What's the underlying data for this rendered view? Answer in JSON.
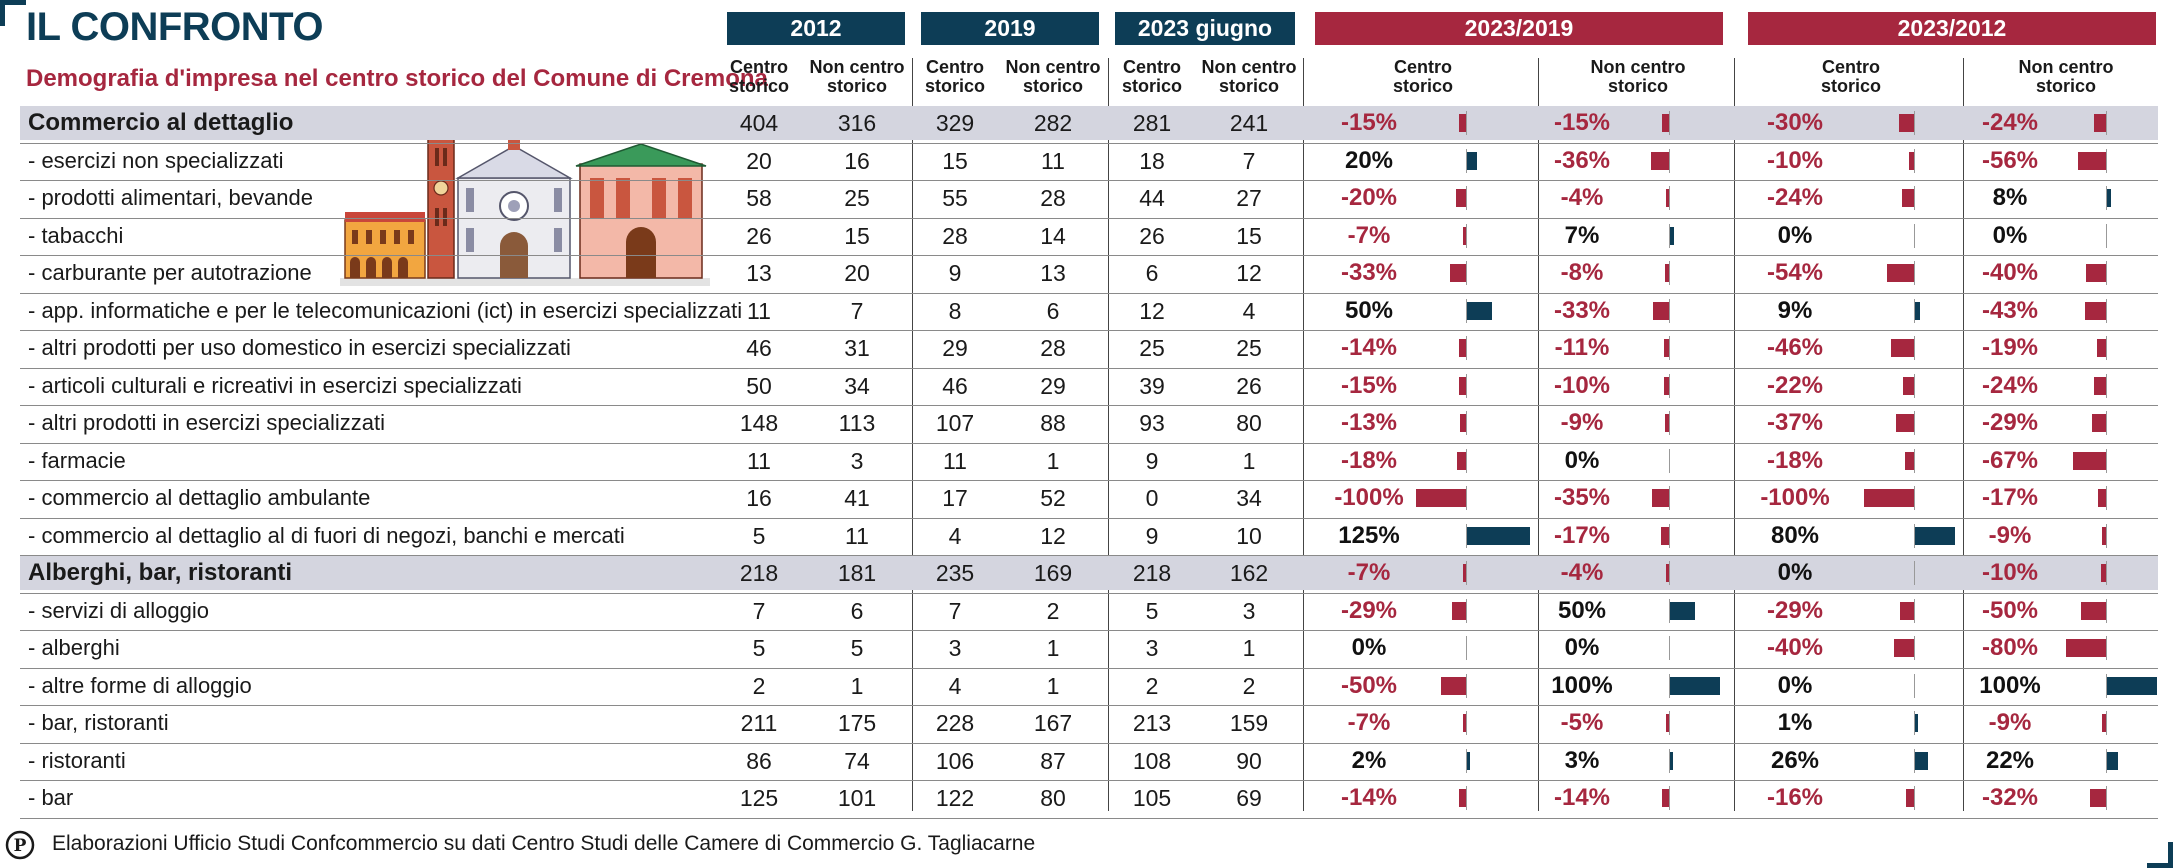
{
  "header": {
    "title": "IL CONFRONTO",
    "subtitle": "Demografia d'impresa nel centro storico del Comune di Cremona"
  },
  "columns": {
    "groups": [
      "2012",
      "2019",
      "2023 giugno",
      "2023/2019",
      "2023/2012"
    ],
    "sub": {
      "a1": "Centro",
      "a2": "storico",
      "b1": "Non centro",
      "b2": "storico"
    }
  },
  "chart_data": {
    "type": "table",
    "title": "IL CONFRONTO",
    "subtitle": "Demografia d'impresa nel centro storico del Comune di Cremona",
    "rows": [
      {
        "label": "Commercio al dettaglio",
        "section": true,
        "v": [
          404,
          316,
          329,
          282,
          281,
          241
        ],
        "p": [
          -15,
          -15,
          -30,
          -24
        ],
        "t": [
          "-15%",
          "-15%",
          "-30%",
          "-24%"
        ]
      },
      {
        "label": "- esercizi non specializzati",
        "v": [
          20,
          16,
          15,
          11,
          18,
          7
        ],
        "p": [
          20,
          -36,
          -10,
          -56
        ],
        "t": [
          "20%",
          "-36%",
          "-10%",
          "-56%"
        ]
      },
      {
        "label": "- prodotti alimentari, bevande",
        "v": [
          58,
          25,
          55,
          28,
          44,
          27
        ],
        "p": [
          -20,
          -4,
          -24,
          8
        ],
        "t": [
          "-20%",
          "-4%",
          "-24%",
          "8%"
        ]
      },
      {
        "label": "- tabacchi",
        "v": [
          26,
          15,
          28,
          14,
          26,
          15
        ],
        "p": [
          -7,
          7,
          0,
          0
        ],
        "t": [
          "-7%",
          "7%",
          "0%",
          "0%"
        ]
      },
      {
        "label": "- carburante per autotrazione",
        "v": [
          13,
          20,
          9,
          13,
          6,
          12
        ],
        "p": [
          -33,
          -8,
          -54,
          -40
        ],
        "t": [
          "-33%",
          "-8%",
          "-54%",
          "-40%"
        ]
      },
      {
        "label": "- app. informatiche e per le telecomunicazioni (ict) in esercizi specializzati",
        "v": [
          11,
          7,
          8,
          6,
          12,
          4
        ],
        "p": [
          50,
          -33,
          9,
          -43
        ],
        "t": [
          "50%",
          "-33%",
          "9%",
          "-43%"
        ]
      },
      {
        "label": "- altri prodotti per uso domestico in esercizi specializzati",
        "v": [
          46,
          31,
          29,
          28,
          25,
          25
        ],
        "p": [
          -14,
          -11,
          -46,
          -19
        ],
        "t": [
          "-14%",
          "-11%",
          "-46%",
          "-19%"
        ]
      },
      {
        "label": "- articoli culturali e ricreativi in esercizi specializzati",
        "v": [
          50,
          34,
          46,
          29,
          39,
          26
        ],
        "p": [
          -15,
          -10,
          -22,
          -24
        ],
        "t": [
          "-15%",
          "-10%",
          "-22%",
          "-24%"
        ]
      },
      {
        "label": "- altri prodotti in esercizi specializzati",
        "v": [
          148,
          113,
          107,
          88,
          93,
          80
        ],
        "p": [
          -13,
          -9,
          -37,
          -29
        ],
        "t": [
          "-13%",
          "-9%",
          "-37%",
          "-29%"
        ]
      },
      {
        "label": "- farmacie",
        "v": [
          11,
          3,
          11,
          1,
          9,
          1
        ],
        "p": [
          -18,
          0,
          -18,
          -67
        ],
        "t": [
          "-18%",
          "0%",
          "-18%",
          "-67%"
        ]
      },
      {
        "label": "- commercio al dettaglio ambulante",
        "v": [
          16,
          41,
          17,
          52,
          0,
          34
        ],
        "p": [
          -100,
          -35,
          -100,
          -17
        ],
        "t": [
          "-100%",
          "-35%",
          "-100%",
          "-17%"
        ]
      },
      {
        "label": "- commercio al dettaglio al di fuori di negozi, banchi e mercati",
        "v": [
          5,
          11,
          4,
          12,
          9,
          10
        ],
        "p": [
          125,
          -17,
          80,
          -9
        ],
        "t": [
          "125%",
          "-17%",
          "80%",
          "-9%"
        ]
      },
      {
        "label": "Alberghi, bar, ristoranti",
        "section": true,
        "v": [
          218,
          181,
          235,
          169,
          218,
          162
        ],
        "p": [
          -7,
          -4,
          0,
          -10
        ],
        "t": [
          "-7%",
          "-4%",
          "0%",
          "-10%"
        ]
      },
      {
        "label": "- servizi di alloggio",
        "v": [
          7,
          6,
          7,
          2,
          5,
          3
        ],
        "p": [
          -29,
          50,
          -29,
          -50
        ],
        "t": [
          "-29%",
          "50%",
          "-29%",
          "-50%"
        ]
      },
      {
        "label": "- alberghi",
        "v": [
          5,
          5,
          3,
          1,
          3,
          1
        ],
        "p": [
          0,
          0,
          -40,
          -80
        ],
        "t": [
          "0%",
          "0%",
          "-40%",
          "-80%"
        ]
      },
      {
        "label": "- altre forme di alloggio",
        "v": [
          2,
          1,
          4,
          1,
          2,
          2
        ],
        "p": [
          -50,
          100,
          0,
          100
        ],
        "t": [
          "-50%",
          "100%",
          "0%",
          "100%"
        ]
      },
      {
        "label": "- bar, ristoranti",
        "v": [
          211,
          175,
          228,
          167,
          213,
          159
        ],
        "p": [
          -7,
          -5,
          1,
          -9
        ],
        "t": [
          "-7%",
          "-5%",
          "1%",
          "-9%"
        ]
      },
      {
        "label": "- ristoranti",
        "v": [
          86,
          74,
          106,
          87,
          108,
          90
        ],
        "p": [
          2,
          3,
          26,
          22
        ],
        "t": [
          "2%",
          "3%",
          "26%",
          "22%"
        ]
      },
      {
        "label": "- bar",
        "v": [
          125,
          101,
          122,
          80,
          105,
          69
        ],
        "p": [
          -14,
          -14,
          -16,
          -32
        ],
        "t": [
          "-14%",
          "-14%",
          "-16%",
          "-32%"
        ]
      }
    ]
  },
  "colors": {
    "blue": "#0d3d56",
    "red": "#a6273f",
    "band": "#d4d5df"
  },
  "footer": {
    "text": "Elaborazioni Ufficio Studi Confcommercio su dati Centro Studi delle Camere di Commercio G. Tagliacarne",
    "logo_letter": "P"
  }
}
